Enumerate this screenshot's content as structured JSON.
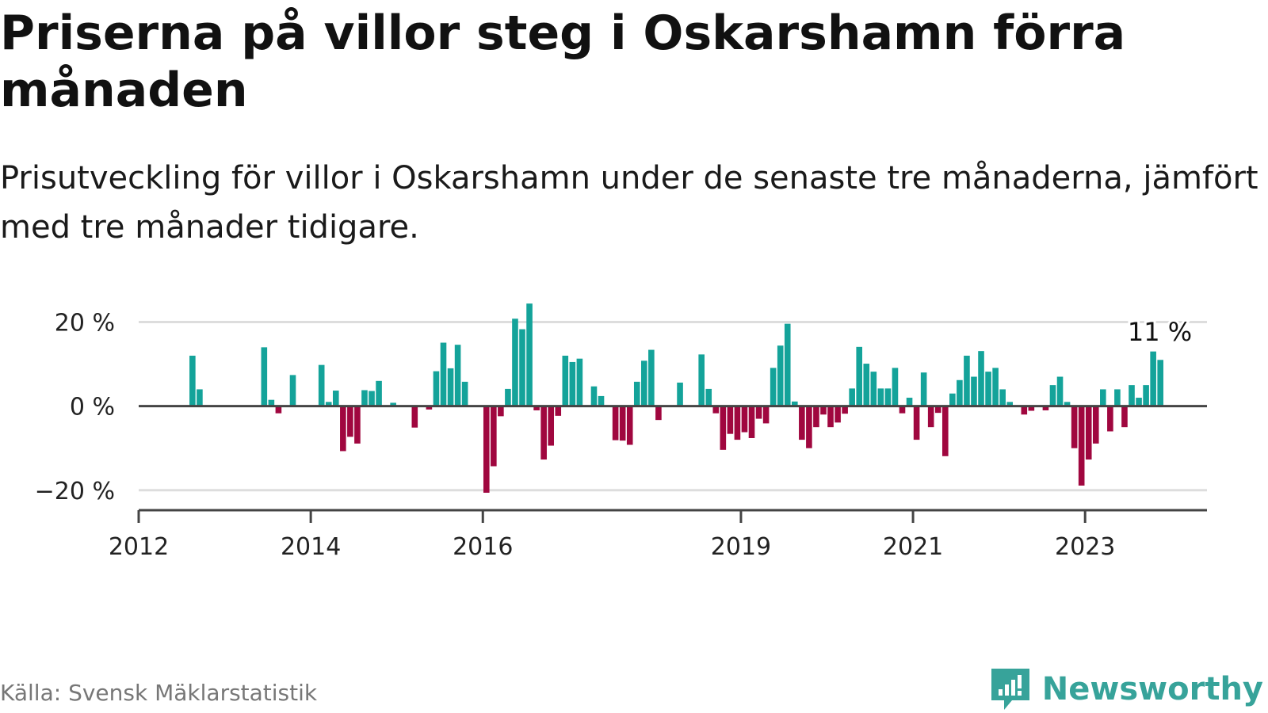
{
  "title": "Priserna på villor steg i Oskarshamn förra månaden",
  "subtitle": "Prisutveckling för villor i Oskarshamn under de senaste tre månaderna, jämfört med tre månader tidigare.",
  "source": "Källa: Svensk Mäklarstatistik",
  "brand": {
    "name": "Newsworthy",
    "icon": "newsworthy-logo-icon"
  },
  "colors": {
    "positive": "#14a39a",
    "negative": "#a0073f",
    "grid": "#dddddd",
    "axis": "#444444",
    "brand": "#37a39a"
  },
  "chart_data": {
    "type": "bar",
    "unit": "%",
    "ylim": [
      -24,
      25
    ],
    "yticks": [
      -20,
      0,
      20
    ],
    "ytick_labels": [
      "−20 %",
      "0 %",
      "20 %"
    ],
    "xticks": [
      "2012",
      "2014",
      "2016",
      "2019",
      "2021",
      "2023"
    ],
    "xlim": [
      "2012-01",
      "2024-06"
    ],
    "grid": true,
    "annotation": {
      "date": "2023-11",
      "label": "11 %"
    },
    "series": [
      {
        "name": "Prisutveckling",
        "points": [
          {
            "date": "2012-08",
            "value": 12
          },
          {
            "date": "2012-09",
            "value": 4
          },
          {
            "date": "2013-06",
            "value": 14
          },
          {
            "date": "2013-07",
            "value": 1.5
          },
          {
            "date": "2013-08",
            "value": -1.7
          },
          {
            "date": "2013-10",
            "value": 7.4
          },
          {
            "date": "2014-02",
            "value": 9.8
          },
          {
            "date": "2014-03",
            "value": 1
          },
          {
            "date": "2014-04",
            "value": 3.7
          },
          {
            "date": "2014-05",
            "value": -10.7
          },
          {
            "date": "2014-06",
            "value": -7.3
          },
          {
            "date": "2014-07",
            "value": -8.9
          },
          {
            "date": "2014-08",
            "value": 3.8
          },
          {
            "date": "2014-09",
            "value": 3.6
          },
          {
            "date": "2014-10",
            "value": 6
          },
          {
            "date": "2014-12",
            "value": 0.8
          },
          {
            "date": "2015-03",
            "value": -5.1
          },
          {
            "date": "2015-05",
            "value": -0.8
          },
          {
            "date": "2015-06",
            "value": 8.3
          },
          {
            "date": "2015-07",
            "value": 15.1
          },
          {
            "date": "2015-08",
            "value": 9
          },
          {
            "date": "2015-09",
            "value": 14.6
          },
          {
            "date": "2015-10",
            "value": 5.8
          },
          {
            "date": "2016-01",
            "value": -20.6
          },
          {
            "date": "2016-02",
            "value": -14.3
          },
          {
            "date": "2016-03",
            "value": -2.4
          },
          {
            "date": "2016-04",
            "value": 4.1
          },
          {
            "date": "2016-05",
            "value": 20.8
          },
          {
            "date": "2016-06",
            "value": 18.3
          },
          {
            "date": "2016-07",
            "value": 24.4
          },
          {
            "date": "2016-08",
            "value": -1
          },
          {
            "date": "2016-09",
            "value": -12.7
          },
          {
            "date": "2016-10",
            "value": -9.4
          },
          {
            "date": "2016-11",
            "value": -2.3
          },
          {
            "date": "2016-12",
            "value": 12
          },
          {
            "date": "2017-01",
            "value": 10.5
          },
          {
            "date": "2017-02",
            "value": 11.3
          },
          {
            "date": "2017-04",
            "value": 4.7
          },
          {
            "date": "2017-05",
            "value": 2.4
          },
          {
            "date": "2017-07",
            "value": -8.1
          },
          {
            "date": "2017-08",
            "value": -8.2
          },
          {
            "date": "2017-09",
            "value": -9.2
          },
          {
            "date": "2017-10",
            "value": 5.8
          },
          {
            "date": "2017-11",
            "value": 10.8
          },
          {
            "date": "2017-12",
            "value": 13.4
          },
          {
            "date": "2018-01",
            "value": -3.3
          },
          {
            "date": "2018-04",
            "value": 5.6
          },
          {
            "date": "2018-07",
            "value": 12.3
          },
          {
            "date": "2018-08",
            "value": 4.1
          },
          {
            "date": "2018-09",
            "value": -1.7
          },
          {
            "date": "2018-10",
            "value": -10.4
          },
          {
            "date": "2018-11",
            "value": -6.6
          },
          {
            "date": "2018-12",
            "value": -8
          },
          {
            "date": "2019-01",
            "value": -6.2
          },
          {
            "date": "2019-02",
            "value": -7.6
          },
          {
            "date": "2019-03",
            "value": -3
          },
          {
            "date": "2019-04",
            "value": -4.1
          },
          {
            "date": "2019-05",
            "value": 9.1
          },
          {
            "date": "2019-06",
            "value": 14.4
          },
          {
            "date": "2019-07",
            "value": 19.6
          },
          {
            "date": "2019-08",
            "value": 1.1
          },
          {
            "date": "2019-09",
            "value": -8
          },
          {
            "date": "2019-10",
            "value": -10
          },
          {
            "date": "2019-11",
            "value": -5
          },
          {
            "date": "2019-12",
            "value": -2
          },
          {
            "date": "2020-01",
            "value": -5
          },
          {
            "date": "2020-02",
            "value": -3.9
          },
          {
            "date": "2020-03",
            "value": -1.8
          },
          {
            "date": "2020-04",
            "value": 4.2
          },
          {
            "date": "2020-05",
            "value": 14.1
          },
          {
            "date": "2020-06",
            "value": 10.1
          },
          {
            "date": "2020-07",
            "value": 8.2
          },
          {
            "date": "2020-08",
            "value": 4.2
          },
          {
            "date": "2020-09",
            "value": 4.2
          },
          {
            "date": "2020-10",
            "value": 9.1
          },
          {
            "date": "2020-11",
            "value": -1.7
          },
          {
            "date": "2020-12",
            "value": 2
          },
          {
            "date": "2021-01",
            "value": -8
          },
          {
            "date": "2021-02",
            "value": 8
          },
          {
            "date": "2021-03",
            "value": -5
          },
          {
            "date": "2021-04",
            "value": -1.6
          },
          {
            "date": "2021-05",
            "value": -11.9
          },
          {
            "date": "2021-06",
            "value": 3
          },
          {
            "date": "2021-07",
            "value": 6.2
          },
          {
            "date": "2021-08",
            "value": 12
          },
          {
            "date": "2021-09",
            "value": 7
          },
          {
            "date": "2021-10",
            "value": 13.1
          },
          {
            "date": "2021-11",
            "value": 8.2
          },
          {
            "date": "2021-12",
            "value": 9.1
          },
          {
            "date": "2022-01",
            "value": 4
          },
          {
            "date": "2022-02",
            "value": 1
          },
          {
            "date": "2022-04",
            "value": -2
          },
          {
            "date": "2022-05",
            "value": -1.1
          },
          {
            "date": "2022-07",
            "value": -1
          },
          {
            "date": "2022-08",
            "value": 5
          },
          {
            "date": "2022-09",
            "value": 7
          },
          {
            "date": "2022-10",
            "value": 1
          },
          {
            "date": "2022-11",
            "value": -10
          },
          {
            "date": "2022-12",
            "value": -18.9
          },
          {
            "date": "2023-01",
            "value": -12.7
          },
          {
            "date": "2023-02",
            "value": -8.9
          },
          {
            "date": "2023-03",
            "value": 4
          },
          {
            "date": "2023-04",
            "value": -6
          },
          {
            "date": "2023-05",
            "value": 4
          },
          {
            "date": "2023-06",
            "value": -5
          },
          {
            "date": "2023-07",
            "value": 5
          },
          {
            "date": "2023-08",
            "value": 2
          },
          {
            "date": "2023-09",
            "value": 5
          },
          {
            "date": "2023-10",
            "value": 13
          },
          {
            "date": "2023-11",
            "value": 11
          }
        ]
      }
    ]
  }
}
